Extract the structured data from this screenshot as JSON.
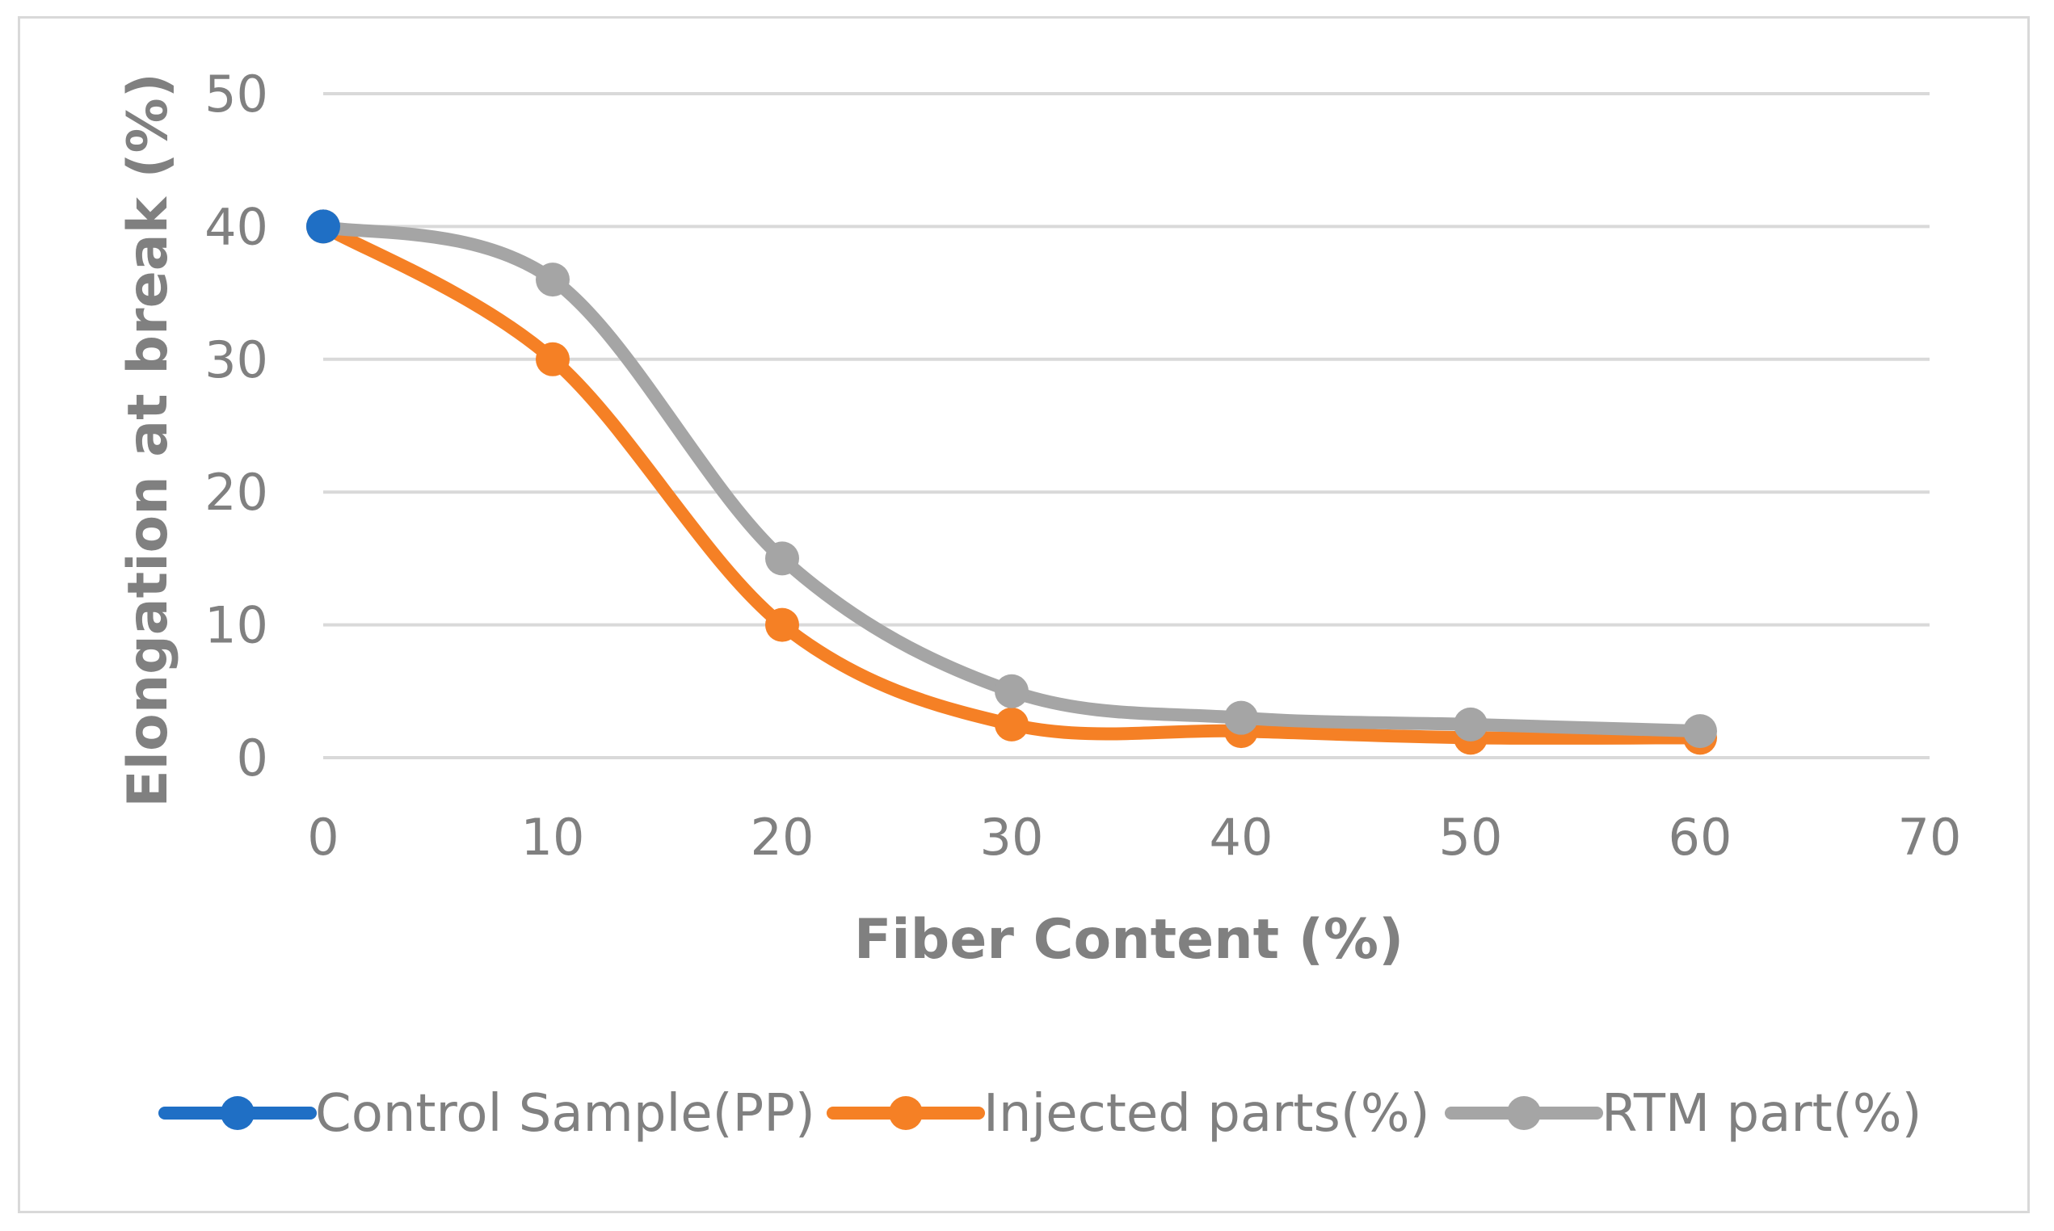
{
  "chart_data": {
    "type": "line",
    "title": "",
    "xlabel": "Fiber Content (%)",
    "ylabel": "Elongation at break (%)",
    "xlim": [
      0,
      70
    ],
    "ylim": [
      0,
      50
    ],
    "x_ticks": [
      0,
      10,
      20,
      30,
      40,
      50,
      60,
      70
    ],
    "y_ticks": [
      0,
      10,
      20,
      30,
      40,
      50
    ],
    "grid": true,
    "legend_position": "bottom",
    "smooth": true,
    "series": [
      {
        "name": "Control Sample(PP)",
        "color": "#1f6fc5",
        "x": [
          0
        ],
        "values": [
          40
        ]
      },
      {
        "name": "Injected parts(%)",
        "color": "#f58025",
        "x": [
          0,
          10,
          20,
          30,
          40,
          50,
          60
        ],
        "values": [
          40,
          30,
          10,
          2.5,
          2,
          1.5,
          1.5
        ]
      },
      {
        "name": "RTM part(%)",
        "color": "#a5a5a5",
        "x": [
          0,
          10,
          20,
          30,
          40,
          50,
          60
        ],
        "values": [
          40,
          36,
          15,
          5,
          3,
          2.5,
          2
        ]
      }
    ]
  }
}
